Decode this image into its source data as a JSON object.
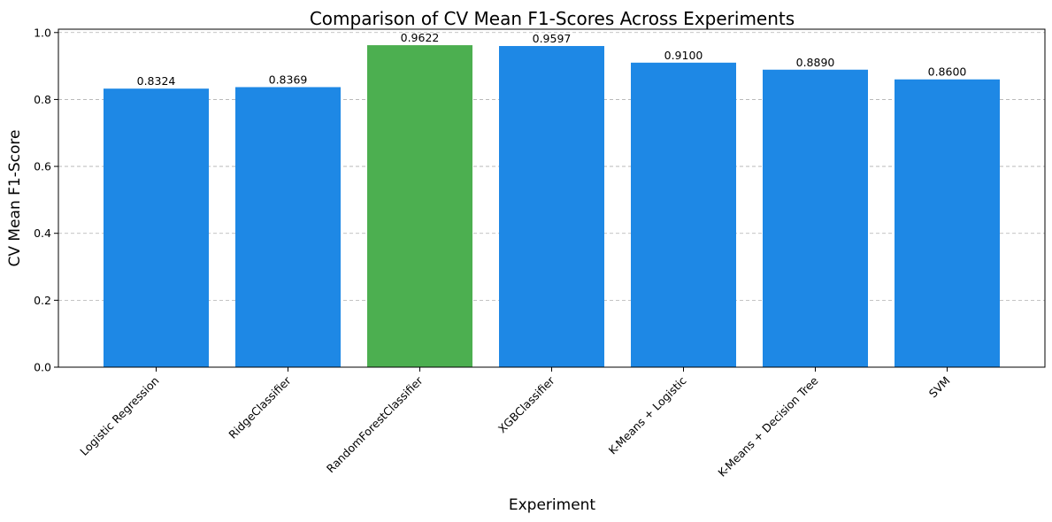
{
  "chart_data": {
    "type": "bar",
    "title": "Comparison of CV Mean F1-Scores Across Experiments",
    "xlabel": "Experiment",
    "ylabel": "CV Mean F1-Score",
    "categories": [
      "Logistic Regression",
      "RidgeClassifier",
      "RandomForestClassifier",
      "XGBClassifier",
      "K-Means + Logistic",
      "K-Means + Decision Tree",
      "SVM"
    ],
    "values": [
      0.8324,
      0.8369,
      0.9622,
      0.9597,
      0.91,
      0.889,
      0.86
    ],
    "value_labels": [
      "0.8324",
      "0.8369",
      "0.9622",
      "0.9597",
      "0.9100",
      "0.8890",
      "0.8600"
    ],
    "highlight_index": 2,
    "ylim": [
      0,
      1.01
    ],
    "yticks": [
      0.0,
      0.2,
      0.4,
      0.6,
      0.8,
      1.0
    ],
    "ytick_labels": [
      "0.0",
      "0.2",
      "0.4",
      "0.6",
      "0.8",
      "1.0"
    ],
    "grid": "y-dashed",
    "colors": {
      "default": "#1e88e5",
      "highlight": "#4caf50"
    }
  }
}
